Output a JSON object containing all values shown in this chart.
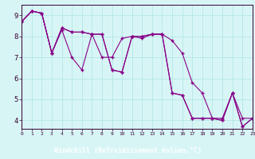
{
  "xlabel": "Windchill (Refroidissement éolien,°C)",
  "background_color": "#d8f5f5",
  "plot_bg_color": "#d8f5f5",
  "line_color": "#880088",
  "grid_color": "#b8e8e8",
  "xlabel_bg": "#440055",
  "x_ticks": [
    0,
    1,
    2,
    3,
    4,
    5,
    6,
    7,
    8,
    9,
    10,
    11,
    12,
    13,
    14,
    15,
    16,
    17,
    18,
    19,
    20,
    21,
    22,
    23
  ],
  "y_ticks": [
    4,
    5,
    6,
    7,
    8,
    9
  ],
  "xlim": [
    0,
    23
  ],
  "ylim": [
    3.6,
    9.5
  ],
  "line1": [
    8.7,
    9.2,
    9.1,
    7.2,
    8.4,
    8.2,
    8.2,
    8.1,
    8.1,
    6.4,
    6.3,
    8.0,
    8.0,
    8.1,
    8.1,
    7.8,
    7.2,
    5.8,
    5.3,
    4.1,
    4.1,
    5.3,
    4.1,
    4.1
  ],
  "line2": [
    8.7,
    9.2,
    9.1,
    7.2,
    8.3,
    7.0,
    6.4,
    8.1,
    7.0,
    7.0,
    7.9,
    8.0,
    7.9,
    8.1,
    8.1,
    5.3,
    5.2,
    4.1,
    4.1,
    4.1,
    4.0,
    5.3,
    3.7,
    4.1
  ],
  "line3": [
    8.7,
    9.2,
    9.1,
    7.2,
    8.4,
    8.2,
    8.2,
    8.1,
    8.1,
    6.4,
    6.3,
    8.0,
    8.0,
    8.1,
    8.1,
    5.3,
    5.2,
    4.1,
    4.1,
    4.1,
    4.0,
    5.3,
    3.7,
    4.1
  ]
}
